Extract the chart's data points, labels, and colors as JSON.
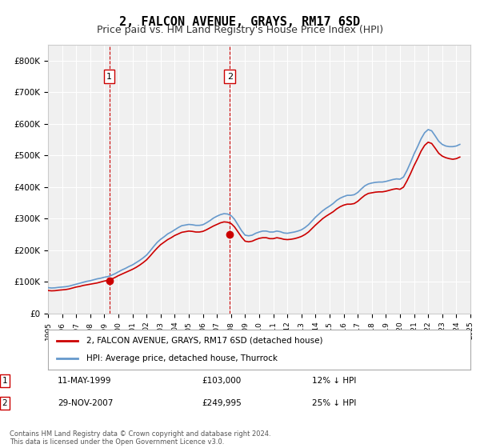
{
  "title": "2, FALCON AVENUE, GRAYS, RM17 6SD",
  "subtitle": "Price paid vs. HM Land Registry's House Price Index (HPI)",
  "title_fontsize": 11,
  "subtitle_fontsize": 9,
  "ylabel_format": "£{0}K",
  "ylim": [
    0,
    850000
  ],
  "yticks": [
    0,
    100000,
    200000,
    300000,
    400000,
    500000,
    600000,
    700000,
    800000
  ],
  "ytick_labels": [
    "£0",
    "£100K",
    "£200K",
    "£300K",
    "£400K",
    "£500K",
    "£600K",
    "£700K",
    "£800K"
  ],
  "background_color": "#ffffff",
  "plot_bg_color": "#f0f0f0",
  "grid_color": "#ffffff",
  "legend_label_red": "2, FALCON AVENUE, GRAYS, RM17 6SD (detached house)",
  "legend_label_blue": "HPI: Average price, detached house, Thurrock",
  "transaction1_date": "11-MAY-1999",
  "transaction1_price": "£103,000",
  "transaction1_hpi": "12% ↓ HPI",
  "transaction1_label": "1",
  "transaction2_date": "29-NOV-2007",
  "transaction2_price": "£249,995",
  "transaction2_hpi": "25% ↓ HPI",
  "transaction2_label": "2",
  "footer": "Contains HM Land Registry data © Crown copyright and database right 2024.\nThis data is licensed under the Open Government Licence v3.0.",
  "red_color": "#cc0000",
  "blue_color": "#6699cc",
  "vline1_x": 1999.35,
  "vline2_x": 2007.91,
  "hpi_data_x": [
    1995.0,
    1995.25,
    1995.5,
    1995.75,
    1996.0,
    1996.25,
    1996.5,
    1996.75,
    1997.0,
    1997.25,
    1997.5,
    1997.75,
    1998.0,
    1998.25,
    1998.5,
    1998.75,
    1999.0,
    1999.25,
    1999.5,
    1999.75,
    2000.0,
    2000.25,
    2000.5,
    2000.75,
    2001.0,
    2001.25,
    2001.5,
    2001.75,
    2002.0,
    2002.25,
    2002.5,
    2002.75,
    2003.0,
    2003.25,
    2003.5,
    2003.75,
    2004.0,
    2004.25,
    2004.5,
    2004.75,
    2005.0,
    2005.25,
    2005.5,
    2005.75,
    2006.0,
    2006.25,
    2006.5,
    2006.75,
    2007.0,
    2007.25,
    2007.5,
    2007.75,
    2008.0,
    2008.25,
    2008.5,
    2008.75,
    2009.0,
    2009.25,
    2009.5,
    2009.75,
    2010.0,
    2010.25,
    2010.5,
    2010.75,
    2011.0,
    2011.25,
    2011.5,
    2011.75,
    2012.0,
    2012.25,
    2012.5,
    2012.75,
    2013.0,
    2013.25,
    2013.5,
    2013.75,
    2014.0,
    2014.25,
    2014.5,
    2014.75,
    2015.0,
    2015.25,
    2015.5,
    2015.75,
    2016.0,
    2016.25,
    2016.5,
    2016.75,
    2017.0,
    2017.25,
    2017.5,
    2017.75,
    2018.0,
    2018.25,
    2018.5,
    2018.75,
    2019.0,
    2019.25,
    2019.5,
    2019.75,
    2020.0,
    2020.25,
    2020.5,
    2020.75,
    2021.0,
    2021.25,
    2021.5,
    2021.75,
    2022.0,
    2022.25,
    2022.5,
    2022.75,
    2023.0,
    2023.25,
    2023.5,
    2023.75,
    2024.0,
    2024.25
  ],
  "hpi_data_y": [
    82000,
    81000,
    81500,
    83000,
    84000,
    85000,
    87000,
    90000,
    93000,
    96000,
    99000,
    102000,
    104000,
    107000,
    110000,
    112000,
    115000,
    117000,
    121000,
    126000,
    132000,
    138000,
    143000,
    149000,
    154000,
    161000,
    168000,
    176000,
    185000,
    198000,
    212000,
    225000,
    235000,
    243000,
    252000,
    258000,
    265000,
    272000,
    278000,
    280000,
    282000,
    281000,
    279000,
    279000,
    281000,
    287000,
    294000,
    302000,
    308000,
    313000,
    316000,
    315000,
    310000,
    298000,
    280000,
    262000,
    248000,
    246000,
    248000,
    254000,
    258000,
    261000,
    261000,
    258000,
    258000,
    261000,
    259000,
    255000,
    254000,
    256000,
    258000,
    261000,
    265000,
    272000,
    281000,
    293000,
    305000,
    315000,
    325000,
    333000,
    340000,
    348000,
    358000,
    365000,
    370000,
    374000,
    374000,
    376000,
    383000,
    394000,
    404000,
    410000,
    413000,
    415000,
    416000,
    416000,
    418000,
    421000,
    424000,
    426000,
    425000,
    432000,
    453000,
    478000,
    505000,
    528000,
    553000,
    572000,
    582000,
    578000,
    562000,
    545000,
    535000,
    530000,
    528000,
    528000,
    530000,
    535000
  ],
  "price_data_x": [
    1995.0,
    1995.25,
    1995.5,
    1995.75,
    1996.0,
    1996.25,
    1996.5,
    1996.75,
    1997.0,
    1997.25,
    1997.5,
    1997.75,
    1998.0,
    1998.25,
    1998.5,
    1998.75,
    1999.0,
    1999.25,
    1999.5,
    1999.75,
    2000.0,
    2000.25,
    2000.5,
    2000.75,
    2001.0,
    2001.25,
    2001.5,
    2001.75,
    2002.0,
    2002.25,
    2002.5,
    2002.75,
    2003.0,
    2003.25,
    2003.5,
    2003.75,
    2004.0,
    2004.25,
    2004.5,
    2004.75,
    2005.0,
    2005.25,
    2005.5,
    2005.75,
    2006.0,
    2006.25,
    2006.5,
    2006.75,
    2007.0,
    2007.25,
    2007.5,
    2007.75,
    2008.0,
    2008.25,
    2008.5,
    2008.75,
    2009.0,
    2009.25,
    2009.5,
    2009.75,
    2010.0,
    2010.25,
    2010.5,
    2010.75,
    2011.0,
    2011.25,
    2011.5,
    2011.75,
    2012.0,
    2012.25,
    2012.5,
    2012.75,
    2013.0,
    2013.25,
    2013.5,
    2013.75,
    2014.0,
    2014.25,
    2014.5,
    2014.75,
    2015.0,
    2015.25,
    2015.5,
    2015.75,
    2016.0,
    2016.25,
    2016.5,
    2016.75,
    2017.0,
    2017.25,
    2017.5,
    2017.75,
    2018.0,
    2018.25,
    2018.5,
    2018.75,
    2019.0,
    2019.25,
    2019.5,
    2019.75,
    2020.0,
    2020.25,
    2020.5,
    2020.75,
    2021.0,
    2021.25,
    2021.5,
    2021.75,
    2022.0,
    2022.25,
    2022.5,
    2022.75,
    2023.0,
    2023.25,
    2023.5,
    2023.75,
    2024.0,
    2024.25
  ],
  "price_data_y": [
    73000,
    72000,
    72500,
    74000,
    75000,
    76000,
    78000,
    81000,
    84000,
    86000,
    89000,
    91000,
    93000,
    95000,
    97000,
    100000,
    103000,
    105000,
    109000,
    114000,
    120000,
    125000,
    130000,
    135000,
    140000,
    146000,
    153000,
    161000,
    170000,
    182000,
    195000,
    207000,
    218000,
    226000,
    234000,
    240000,
    247000,
    252000,
    257000,
    259000,
    261000,
    260000,
    258000,
    258000,
    260000,
    265000,
    271000,
    277000,
    282000,
    287000,
    290000,
    289000,
    285000,
    274000,
    258000,
    242000,
    229000,
    227000,
    229000,
    234000,
    238000,
    240000,
    240000,
    237000,
    237000,
    240000,
    238000,
    235000,
    234000,
    235000,
    237000,
    240000,
    244000,
    250000,
    258000,
    269000,
    280000,
    290000,
    300000,
    308000,
    315000,
    322000,
    331000,
    338000,
    343000,
    346000,
    346000,
    348000,
    355000,
    365000,
    374000,
    380000,
    382000,
    384000,
    385000,
    385000,
    387000,
    390000,
    393000,
    395000,
    393000,
    400000,
    420000,
    443000,
    468000,
    490000,
    514000,
    532000,
    542000,
    538000,
    523000,
    507000,
    498000,
    493000,
    490000,
    488000,
    490000,
    495000
  ],
  "marker1_x": 1999.35,
  "marker1_y": 103000,
  "marker2_x": 2007.91,
  "marker2_y": 249995,
  "xlim_left": 1995.0,
  "xlim_right": 2025.0,
  "xtick_years": [
    "1995",
    "1996",
    "1997",
    "1998",
    "1999",
    "2000",
    "2001",
    "2002",
    "2003",
    "2004",
    "2005",
    "2006",
    "2007",
    "2008",
    "2009",
    "2010",
    "2011",
    "2012",
    "2013",
    "2014",
    "2015",
    "2016",
    "2017",
    "2018",
    "2019",
    "2020",
    "2021",
    "2022",
    "2023",
    "2024",
    "2025"
  ]
}
